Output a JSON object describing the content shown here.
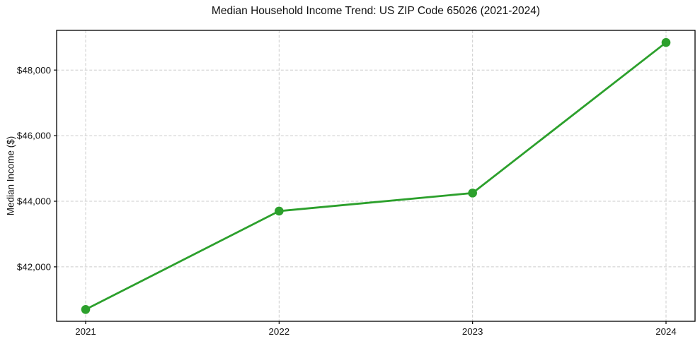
{
  "chart_data": {
    "type": "line",
    "title": "Median Household Income Trend: US ZIP Code 65026 (2021-2024)",
    "xlabel": "",
    "ylabel": "Median Income ($)",
    "x": [
      2021,
      2022,
      2023,
      2024
    ],
    "x_tick_labels": [
      "2021",
      "2022",
      "2023",
      "2024"
    ],
    "y_ticks": [
      42000,
      44000,
      46000,
      48000
    ],
    "y_tick_labels": [
      "$42,000",
      "$44,000",
      "$46,000",
      "$48,000"
    ],
    "xlim": [
      2020.85,
      2024.15
    ],
    "ylim": [
      40340,
      49210
    ],
    "grid": true,
    "legend": false,
    "series": [
      {
        "name": "Median Household Income",
        "color": "#2ca02c",
        "marker": "circle",
        "marker_radius": 6.3,
        "values": [
          40700,
          43700,
          44250,
          48840
        ]
      }
    ]
  },
  "colors": {
    "line": "#2ca02c",
    "grid": "#cccccc",
    "spine": "#000000",
    "text": "#111111",
    "background": "#ffffff"
  }
}
